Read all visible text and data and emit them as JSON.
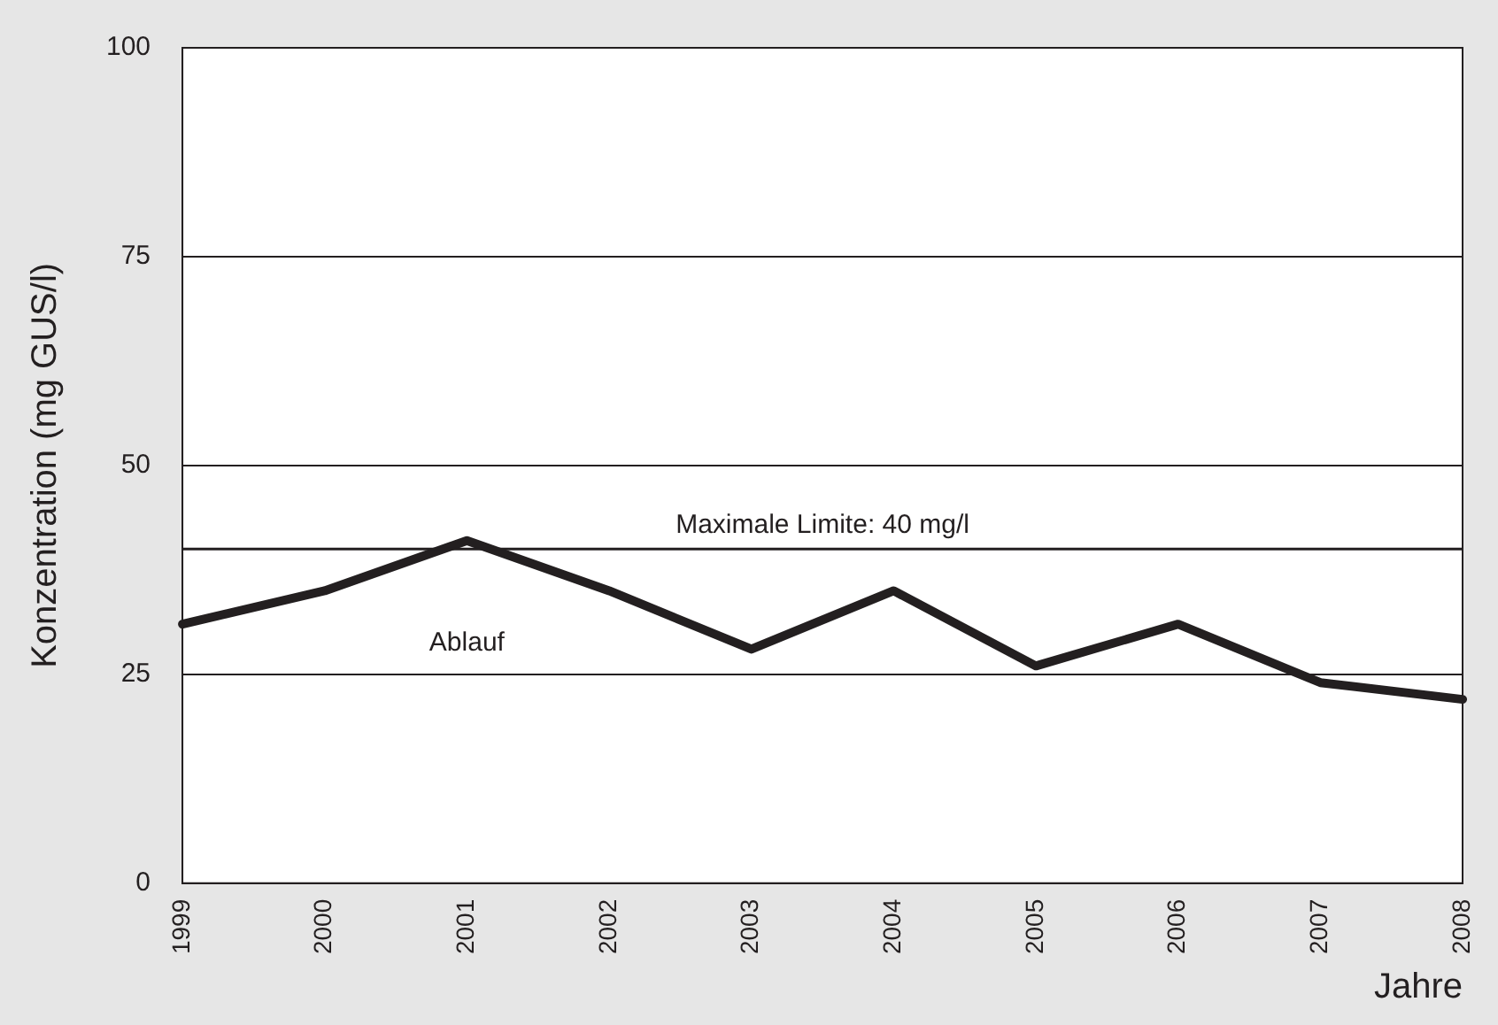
{
  "chart_data": {
    "type": "line",
    "ylabel": "Konzentration (mg GUS/l)",
    "xlabel": "Jahre",
    "categories": [
      "1999",
      "2000",
      "2001",
      "2002",
      "2003",
      "2004",
      "2005",
      "2006",
      "2007",
      "2008"
    ],
    "series": [
      {
        "name": "Ablauf",
        "color": "#231f20",
        "values": [
          31,
          35,
          41,
          35,
          28,
          35,
          26,
          31,
          24,
          22
        ]
      }
    ],
    "ylim": [
      0,
      100
    ],
    "yticks": [
      0,
      25,
      50,
      75,
      100
    ],
    "grid": "y",
    "legend": false,
    "marker": "none",
    "line_style": "solid",
    "ref_lines": [
      {
        "axis": "y",
        "value": 40,
        "label": "Maximale Limite: 40 mg/l",
        "color": "#231f20"
      }
    ]
  }
}
